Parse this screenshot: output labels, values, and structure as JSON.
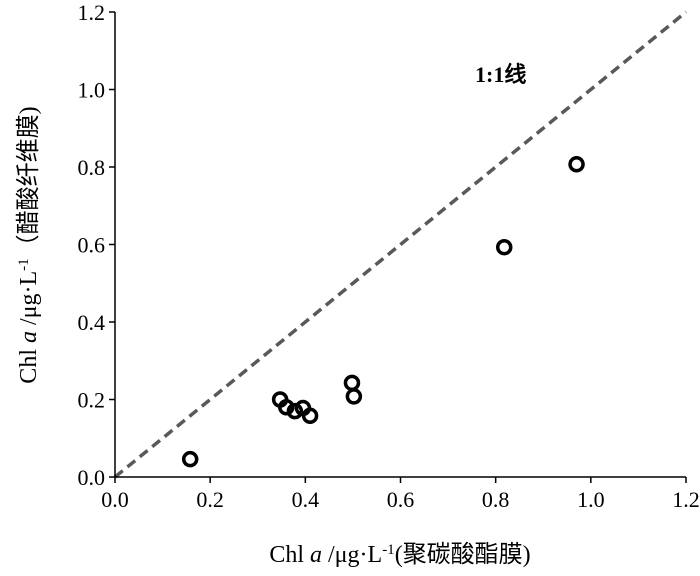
{
  "chart_data": {
    "type": "scatter",
    "x": [
      0.158,
      0.347,
      0.36,
      0.378,
      0.395,
      0.41,
      0.498,
      0.502,
      0.818,
      0.97
    ],
    "y": [
      0.046,
      0.2,
      0.18,
      0.17,
      0.178,
      0.158,
      0.243,
      0.208,
      0.593,
      0.807
    ],
    "xlim": [
      0.0,
      1.2
    ],
    "ylim": [
      0.0,
      1.2
    ],
    "xticks": [
      "0.0",
      "0.2",
      "0.4",
      "0.6",
      "0.8",
      "1.0",
      "1.2"
    ],
    "yticks": [
      "0.0",
      "0.2",
      "0.4",
      "0.6",
      "0.8",
      "1.0",
      "1.2"
    ],
    "xlabel": {
      "prefix": "Chl ",
      "italic": "a",
      "unit": "  /μg·L",
      "sup": "-1",
      "suffix": "(聚碳酸酯膜)"
    },
    "ylabel": {
      "prefix": "Chl ",
      "italic": "a",
      "unit": "  /μg·L",
      "sup": "-1",
      "suffix": "（醋酸纤维膜)"
    },
    "reference_line": {
      "label": "1:1线",
      "style": "dashed",
      "color": "#595959"
    },
    "marker": "open-circle",
    "grid": false,
    "legend": "none"
  }
}
